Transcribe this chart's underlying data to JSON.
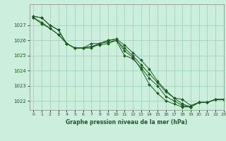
{
  "title": "Graphe pression niveau de la mer (hPa)",
  "bg_color": "#cceedd",
  "grid_color": "#99ccbb",
  "line_color": "#1a5c1a",
  "marker_color": "#1a5c1a",
  "xlim": [
    -0.5,
    23
  ],
  "ylim": [
    1021.4,
    1028.4
  ],
  "yticks": [
    1022,
    1023,
    1024,
    1025,
    1026,
    1027
  ],
  "xticks": [
    0,
    1,
    2,
    3,
    4,
    5,
    6,
    7,
    8,
    9,
    10,
    11,
    12,
    13,
    14,
    15,
    16,
    17,
    18,
    19,
    20,
    21,
    22,
    23
  ],
  "series": [
    [
      1027.6,
      1027.5,
      1027.0,
      1026.7,
      1025.8,
      1025.5,
      1025.5,
      1025.8,
      1025.8,
      1026.0,
      1026.1,
      1025.7,
      1025.2,
      1024.7,
      1024.1,
      1023.3,
      1022.7,
      1022.2,
      1022.1,
      1021.7,
      1021.9,
      1021.9,
      1022.1,
      1022.1
    ],
    [
      1027.6,
      1027.5,
      1027.0,
      1026.7,
      1025.8,
      1025.5,
      1025.5,
      1025.6,
      1025.8,
      1026.0,
      1026.1,
      1025.3,
      1024.9,
      1024.1,
      1023.1,
      1022.5,
      1022.0,
      1021.8,
      1021.6,
      1021.6,
      1021.9,
      1021.9,
      1022.1,
      1022.1
    ],
    [
      1027.5,
      1027.2,
      1026.8,
      1026.4,
      1025.8,
      1025.5,
      1025.5,
      1025.6,
      1025.7,
      1025.8,
      1026.0,
      1025.5,
      1025.0,
      1024.4,
      1023.8,
      1023.2,
      1022.6,
      1022.2,
      1021.8,
      1021.6,
      1021.9,
      1021.9,
      1022.1,
      1022.1
    ],
    [
      1027.5,
      1027.1,
      1026.8,
      1026.4,
      1025.8,
      1025.5,
      1025.5,
      1025.5,
      1025.8,
      1025.9,
      1026.0,
      1025.0,
      1024.8,
      1024.2,
      1023.5,
      1023.0,
      1022.3,
      1022.0,
      1021.7,
      1021.6,
      1021.9,
      1021.9,
      1022.1,
      1022.1
    ]
  ]
}
